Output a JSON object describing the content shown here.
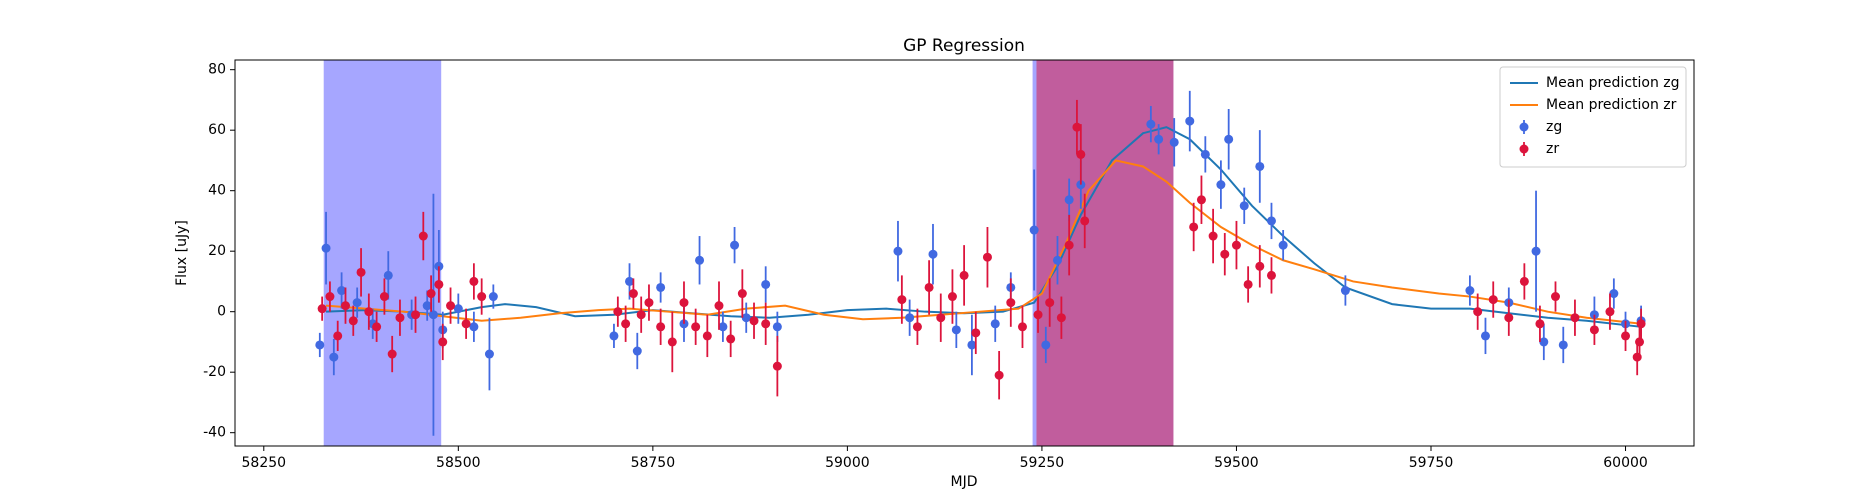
{
  "chart_data": {
    "type": "line",
    "title": "GP Regression",
    "xlabel": "MJD",
    "ylabel": "Flux [uJy]",
    "xlim": [
      58213,
      60088
    ],
    "ylim": [
      -44.4,
      83.2
    ],
    "xticks": [
      58250,
      58500,
      58750,
      59000,
      59250,
      59500,
      59750,
      60000
    ],
    "yticks": [
      -40,
      -20,
      0,
      20,
      40,
      60,
      80
    ],
    "legend": "upper right",
    "spans": [
      {
        "x": [
          58327,
          58478
        ],
        "color": "#0000ff",
        "opacity": 0.35
      },
      {
        "x": [
          59238,
          59419
        ],
        "color": "#0000ff",
        "opacity": 0.35
      },
      {
        "x": [
          59243,
          59419
        ],
        "color": "#dc143c",
        "opacity": 0.5
      }
    ],
    "series": [
      {
        "name": "Mean prediction zg",
        "kind": "line",
        "color": "#1f77b4",
        "x": [
          58330,
          58380,
          58430,
          58480,
          58530,
          58560,
          58600,
          58650,
          58700,
          58750,
          58800,
          58850,
          58900,
          58950,
          59000,
          59050,
          59100,
          59150,
          59200,
          59240,
          59270,
          59300,
          59340,
          59380,
          59410,
          59440,
          59480,
          59520,
          59560,
          59600,
          59640,
          59700,
          59750,
          59800,
          59850,
          59900,
          59950,
          60020
        ],
        "values": [
          0,
          0.5,
          0,
          -1,
          1.5,
          2.5,
          1.5,
          -1.5,
          -1,
          0.5,
          -0.5,
          -1.5,
          -2,
          -1,
          0.5,
          1,
          0,
          -0.5,
          0,
          3,
          15,
          32,
          50,
          59,
          61,
          57,
          47,
          35,
          25,
          16,
          8,
          2.5,
          1,
          1,
          -0.5,
          -2,
          -3,
          -5
        ]
      },
      {
        "name": "Mean prediction zr",
        "kind": "line",
        "color": "#ff7f0e",
        "x": [
          58330,
          58380,
          58430,
          58480,
          58530,
          58580,
          58630,
          58680,
          58720,
          58770,
          58820,
          58870,
          58920,
          58970,
          59020,
          59070,
          59120,
          59170,
          59220,
          59250,
          59280,
          59310,
          59345,
          59380,
          59410,
          59440,
          59480,
          59520,
          59560,
          59600,
          59650,
          59700,
          59760,
          59800,
          59850,
          59900,
          59950,
          60020
        ],
        "values": [
          2,
          1,
          0,
          -1.5,
          -3,
          -2,
          -0.5,
          0.5,
          1,
          0,
          -1,
          1,
          2,
          -1,
          -2.5,
          -2,
          -1,
          0,
          1,
          6,
          22,
          40,
          50,
          48,
          43,
          36,
          28,
          22,
          17,
          14,
          10,
          8,
          6,
          5,
          3,
          0,
          -2,
          -4
        ]
      },
      {
        "name": "zg",
        "kind": "errorbar",
        "color": "#4169e1",
        "x": [
          58322,
          58330,
          58340,
          58350,
          58370,
          58390,
          58410,
          58440,
          58460,
          58468,
          58475,
          58480,
          58500,
          58520,
          58540,
          58545,
          58700,
          58720,
          58730,
          58760,
          58790,
          58810,
          58840,
          58855,
          58870,
          58895,
          58910,
          59065,
          59080,
          59110,
          59140,
          59160,
          59190,
          59210,
          59240,
          59255,
          59270,
          59285,
          59300,
          59390,
          59400,
          59420,
          59440,
          59460,
          59480,
          59490,
          59510,
          59530,
          59545,
          59560,
          59640,
          59800,
          59820,
          59850,
          59885,
          59895,
          59920,
          59960,
          59985,
          60000,
          60020
        ],
        "values": [
          -11,
          21,
          -15,
          7,
          3,
          -4,
          12,
          -1,
          2,
          -1,
          15,
          -6,
          1,
          -5,
          -14,
          5,
          -8,
          10,
          -13,
          8,
          -4,
          17,
          -5,
          22,
          -2,
          9,
          -5,
          20,
          -2,
          19,
          -6,
          -11,
          -4,
          8,
          27,
          -11,
          17,
          37,
          42,
          62,
          57,
          56,
          63,
          52,
          42,
          57,
          35,
          48,
          30,
          22,
          7,
          7,
          -8,
          3,
          20,
          -10,
          -11,
          -1,
          6,
          -4,
          -3
        ],
        "errors": [
          4,
          12,
          6,
          6,
          5,
          5,
          8,
          5,
          5,
          40,
          12,
          6,
          5,
          5,
          12,
          4,
          4,
          6,
          6,
          5,
          6,
          8,
          5,
          6,
          5,
          6,
          5,
          10,
          6,
          10,
          6,
          10,
          6,
          5,
          20,
          6,
          8,
          7,
          8,
          6,
          5,
          8,
          10,
          6,
          8,
          10,
          6,
          12,
          6,
          5,
          5,
          5,
          6,
          5,
          20,
          6,
          6,
          6,
          5,
          4,
          5
        ]
      },
      {
        "name": "zr",
        "kind": "errorbar",
        "color": "#dc143c",
        "x": [
          58325,
          58335,
          58345,
          58355,
          58365,
          58375,
          58385,
          58395,
          58405,
          58415,
          58425,
          58445,
          58455,
          58465,
          58475,
          58480,
          58490,
          58510,
          58520,
          58530,
          58705,
          58715,
          58725,
          58735,
          58745,
          58760,
          58775,
          58790,
          58805,
          58820,
          58835,
          58850,
          58865,
          58880,
          58895,
          58910,
          59070,
          59090,
          59105,
          59120,
          59135,
          59150,
          59165,
          59180,
          59195,
          59210,
          59225,
          59245,
          59260,
          59275,
          59285,
          59295,
          59300,
          59305,
          59445,
          59455,
          59470,
          59485,
          59500,
          59515,
          59530,
          59545,
          59810,
          59830,
          59850,
          59870,
          59890,
          59910,
          59935,
          59960,
          59980,
          60000,
          60015,
          60018,
          60020
        ],
        "values": [
          1,
          5,
          -8,
          2,
          -3,
          13,
          0,
          -5,
          5,
          -14,
          -2,
          -1,
          25,
          6,
          9,
          -10,
          2,
          -4,
          10,
          5,
          0,
          -4,
          6,
          -1,
          3,
          -5,
          -10,
          3,
          -5,
          -8,
          2,
          -9,
          6,
          -3,
          -4,
          -18,
          4,
          -5,
          8,
          -2,
          5,
          12,
          -7,
          18,
          -21,
          3,
          -5,
          -1,
          3,
          -2,
          22,
          61,
          52,
          30,
          28,
          37,
          25,
          19,
          22,
          9,
          15,
          12,
          0,
          4,
          -2,
          10,
          -4,
          5,
          -2,
          -6,
          0,
          -8,
          -15,
          -10,
          -4
        ],
        "errors": [
          4,
          5,
          5,
          6,
          5,
          8,
          6,
          5,
          6,
          6,
          6,
          6,
          8,
          6,
          6,
          6,
          6,
          5,
          6,
          6,
          5,
          6,
          5,
          6,
          6,
          6,
          10,
          7,
          6,
          7,
          8,
          6,
          8,
          6,
          7,
          10,
          8,
          6,
          9,
          8,
          9,
          10,
          7,
          10,
          8,
          8,
          7,
          6,
          8,
          7,
          10,
          9,
          10,
          9,
          8,
          8,
          9,
          7,
          8,
          6,
          7,
          6,
          6,
          6,
          6,
          6,
          6,
          5,
          6,
          5,
          6,
          5,
          6,
          5,
          5
        ]
      }
    ]
  }
}
